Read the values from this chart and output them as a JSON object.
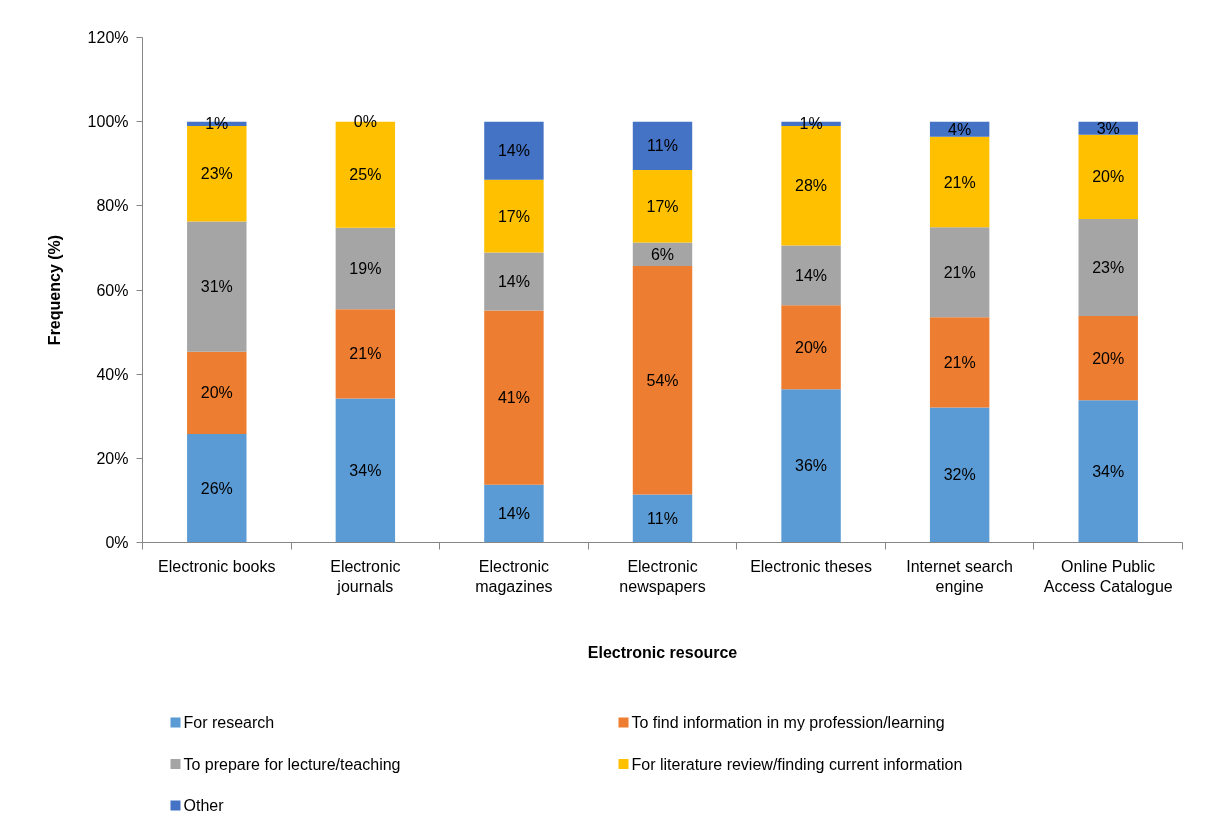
{
  "chart_data": {
    "type": "bar",
    "stacked": true,
    "xlabel": "Electronic resource",
    "ylabel": "Frequency (%)",
    "categories": [
      "Electronic books",
      "Electronic journals",
      "Electronic magazines",
      "Electronic newspapers",
      "Electronic theses",
      "Internet search engine",
      "Online Public Access Catalogue"
    ],
    "ylim": [
      0,
      120
    ],
    "yticks": [
      {
        "value": 0,
        "label": "0%"
      },
      {
        "value": 20,
        "label": "20%"
      },
      {
        "value": 40,
        "label": "40%"
      },
      {
        "value": 60,
        "label": "60%"
      },
      {
        "value": 80,
        "label": "80%"
      },
      {
        "value": 100,
        "label": "100%"
      },
      {
        "value": 120,
        "label": "120%"
      }
    ],
    "legend": "bottom",
    "series": [
      {
        "name": "For research",
        "color": "#5b9bd5",
        "values": [
          25.8,
          34.2,
          13.7,
          11.4,
          36.4,
          32.1,
          33.8
        ],
        "value_labels": [
          "26%",
          "34%",
          "14%",
          "11%",
          "36%",
          "32%",
          "34%"
        ]
      },
      {
        "name": "To find information in my profession/learning",
        "color": "#ed7d31",
        "values": [
          19.5,
          21.2,
          41.4,
          54.3,
          20.0,
          21.4,
          20.0
        ],
        "value_labels": [
          "20%",
          "21%",
          "41%",
          "54%",
          "20%",
          "21%",
          "20%"
        ]
      },
      {
        "name": "To prepare for lecture/teaching",
        "color": "#a5a5a5",
        "values": [
          31.0,
          19.4,
          13.8,
          5.6,
          14.2,
          21.4,
          23.1
        ],
        "value_labels": [
          "31%",
          "19%",
          "14%",
          "6%",
          "14%",
          "21%",
          "23%"
        ]
      },
      {
        "name": "For literature review/finding current information",
        "color": "#ffc000",
        "values": [
          22.7,
          25.2,
          17.3,
          17.2,
          28.4,
          21.5,
          20.0
        ],
        "value_labels": [
          "23%",
          "25%",
          "17%",
          "17%",
          "28%",
          "21%",
          "20%"
        ]
      },
      {
        "name": "Other",
        "color": "#4472c4",
        "values": [
          1.0,
          0,
          13.8,
          11.5,
          1.0,
          3.6,
          3.1
        ],
        "value_labels": [
          "1%",
          "0%",
          "14%",
          "11%",
          "1%",
          "4%",
          "3%"
        ]
      }
    ]
  }
}
